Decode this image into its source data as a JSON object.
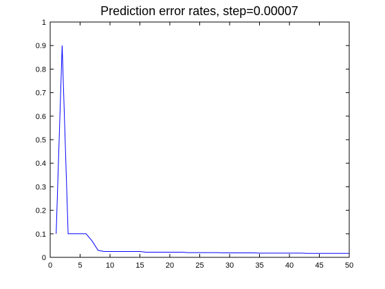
{
  "chart_data": {
    "type": "line",
    "title": "Prediction error rates, step=0.00007",
    "xlabel": "",
    "ylabel": "",
    "xlim": [
      0,
      50
    ],
    "ylim": [
      0,
      1
    ],
    "x_ticks": [
      "0",
      "5",
      "10",
      "15",
      "20",
      "25",
      "30",
      "35",
      "40",
      "45",
      "50"
    ],
    "y_ticks": [
      "0",
      "0.1",
      "0.2",
      "0.3",
      "0.4",
      "0.5",
      "0.6",
      "0.7",
      "0.8",
      "0.9",
      "1"
    ],
    "grid": false,
    "legend": "none",
    "series": [
      {
        "color": "#0000ff",
        "x": [
          1,
          2,
          3,
          4,
          5,
          6,
          7,
          8,
          9,
          10,
          11,
          12,
          13,
          14,
          15,
          16,
          17,
          18,
          19,
          20,
          21,
          22,
          23,
          24,
          25,
          26,
          27,
          28,
          29,
          30,
          31,
          32,
          33,
          34,
          35,
          36,
          37,
          38,
          39,
          40,
          41,
          42,
          43,
          44,
          45,
          46,
          47,
          48,
          49,
          50
        ],
        "y": [
          0.1,
          0.9,
          0.1,
          0.1,
          0.1,
          0.1,
          0.07,
          0.03,
          0.025,
          0.025,
          0.025,
          0.025,
          0.025,
          0.025,
          0.025,
          0.022,
          0.022,
          0.022,
          0.022,
          0.022,
          0.022,
          0.022,
          0.02,
          0.02,
          0.02,
          0.02,
          0.02,
          0.02,
          0.019,
          0.019,
          0.019,
          0.019,
          0.019,
          0.019,
          0.018,
          0.018,
          0.018,
          0.018,
          0.018,
          0.018,
          0.018,
          0.018,
          0.017,
          0.017,
          0.017,
          0.017,
          0.017,
          0.017,
          0.017,
          0.017
        ]
      }
    ]
  }
}
